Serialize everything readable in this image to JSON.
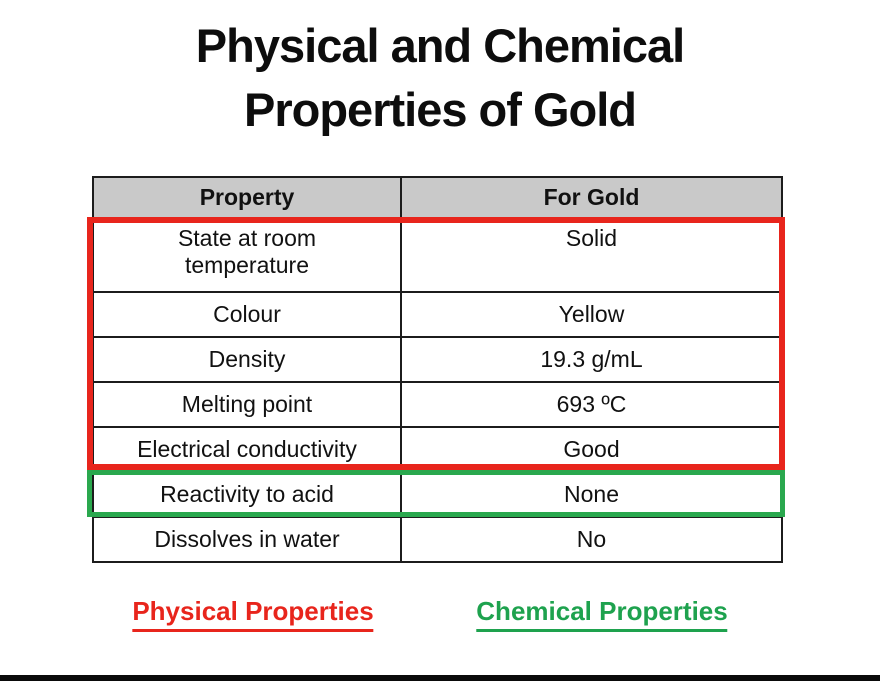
{
  "title": {
    "line1": "Physical and Chemical",
    "line2": "Properties of Gold"
  },
  "table": {
    "headers": {
      "property": "Property",
      "value": "For Gold"
    },
    "rows": [
      {
        "property": "State at room temperature",
        "value": "Solid"
      },
      {
        "property": "Colour",
        "value": "Yellow"
      },
      {
        "property": "Density",
        "value": "19.3 g/mL"
      },
      {
        "property": "Melting point",
        "value": "693 ºC"
      },
      {
        "property": "Electrical conductivity",
        "value": "Good"
      },
      {
        "property": "Reactivity to acid",
        "value": "None"
      },
      {
        "property": "Dissolves in water",
        "value": "No"
      }
    ]
  },
  "legend": {
    "physical_label": "Physical Properties",
    "chemical_label": "Chemical Properties"
  },
  "colors": {
    "physical_highlight": "#e8251c",
    "chemical_highlight": "#2aa84e",
    "legend_physical_text": "#e8251c",
    "legend_chemical_text": "#1ea24e",
    "table_header_bg": "#c9c9c9",
    "table_border": "#1c1c1c",
    "title_text": "#0d0d0d"
  }
}
